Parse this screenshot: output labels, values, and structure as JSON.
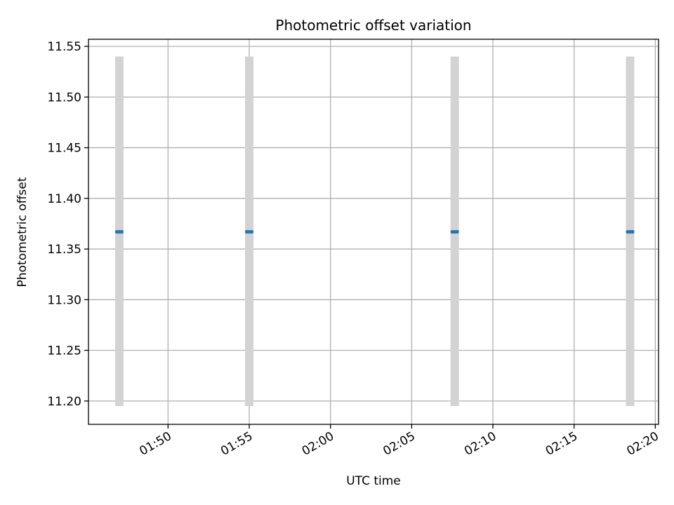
{
  "chart_data": {
    "type": "scatter",
    "title": "Photometric offset variation",
    "xlabel": "UTC time",
    "ylabel": "Photometric offset",
    "grid": true,
    "x_ticks": [
      "01:50",
      "01:55",
      "02:00",
      "02:05",
      "02:10",
      "02:15",
      "02:20"
    ],
    "x_tick_minutes": [
      110,
      115,
      120,
      125,
      130,
      135,
      140
    ],
    "xlim_minutes": [
      105.1,
      140.2
    ],
    "y_ticks": [
      "11.20",
      "11.25",
      "11.30",
      "11.35",
      "11.40",
      "11.45",
      "11.50",
      "11.55"
    ],
    "y_tick_values": [
      11.2,
      11.25,
      11.3,
      11.35,
      11.4,
      11.45,
      11.5,
      11.55
    ],
    "ylim": [
      11.177,
      11.557
    ],
    "groups": [
      {
        "x_minutes": [
          106.85,
          107.0,
          107.15
        ],
        "y": [
          11.367,
          11.367,
          11.367
        ],
        "err_low": 11.195,
        "err_high": 11.54
      },
      {
        "x_minutes": [
          114.85,
          115.0,
          115.15
        ],
        "y": [
          11.367,
          11.367,
          11.367
        ],
        "err_low": 11.195,
        "err_high": 11.54
      },
      {
        "x_minutes": [
          127.5,
          127.65,
          127.8
        ],
        "y": [
          11.367,
          11.367,
          11.367
        ],
        "err_low": 11.195,
        "err_high": 11.54
      },
      {
        "x_minutes": [
          138.3,
          138.45,
          138.6
        ],
        "y": [
          11.367,
          11.367,
          11.367
        ],
        "err_low": 11.195,
        "err_high": 11.54
      }
    ],
    "colors": {
      "points": "#1f77b4",
      "error_band": "#d3d3d3",
      "grid": "#b0b0b0",
      "axes": "#000000"
    }
  }
}
